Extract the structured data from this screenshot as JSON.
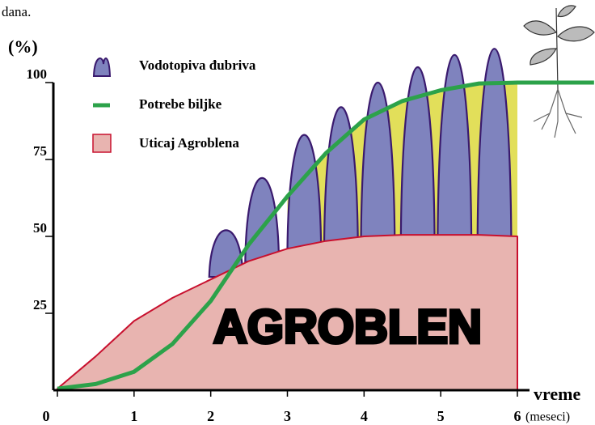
{
  "chart_data": {
    "type": "area",
    "note_text": "dana.",
    "y_label": "(%)",
    "x_label": "vreme",
    "x_unit": "(meseci)",
    "annotation": "AGROBLEN",
    "xlim": [
      0,
      6
    ],
    "ylim": [
      0,
      100
    ],
    "xticks": [
      0,
      1,
      2,
      3,
      4,
      5,
      6
    ],
    "yticks": [
      25,
      50,
      75,
      100
    ],
    "series": [
      {
        "name": "Vodotopiva đubriva",
        "type": "peak",
        "color": "#7f83be",
        "x": [
          2.2,
          2.67,
          3.22,
          3.7,
          4.18,
          4.7,
          5.18,
          5.7
        ],
        "values": [
          52,
          69,
          83,
          92,
          100,
          105,
          109,
          111
        ]
      },
      {
        "name": "Potrebe biljke",
        "type": "line",
        "color": "#2ca24a",
        "x": [
          0,
          0.5,
          1,
          1.5,
          2,
          2.5,
          3,
          3.5,
          4,
          4.5,
          5,
          5.5,
          6,
          7
        ],
        "values": [
          0.5,
          2,
          6,
          15,
          29,
          47.5,
          63,
          77,
          88,
          94,
          97.5,
          99.7,
          100,
          100
        ]
      },
      {
        "name": "Uticaj Agroblena",
        "type": "area",
        "color": "#e8b4b0",
        "x": [
          0,
          0.5,
          1,
          1.5,
          2,
          2.5,
          3,
          3.5,
          4,
          4.5,
          5,
          5.5,
          6
        ],
        "values": [
          0.5,
          11,
          22.5,
          30,
          36,
          42,
          46,
          48.5,
          50,
          50.5,
          50.5,
          50.5,
          50
        ]
      }
    ]
  }
}
